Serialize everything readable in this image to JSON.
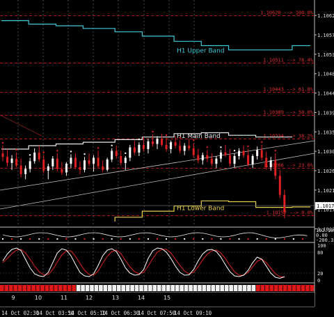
{
  "chart_data": {
    "type": "line",
    "instrument_title": "",
    "price_axis": {
      "ylim": [
        1.10142,
        1.1063
      ],
      "ticks": [
        "1.10620",
        "1.10575",
        "1.10530",
        "1.10485",
        "1.10440",
        "1.10395",
        "1.10350",
        "1.10305",
        "1.10260",
        "1.10215",
        "1.10170",
        "1.10125"
      ],
      "current_price": "1.10179"
    },
    "fib_levels": [
      {
        "price": 1.1062,
        "label": "1.10620 --> 100.0%"
      },
      {
        "price": 1.10511,
        "label": "1.10511 --> 76.4%"
      },
      {
        "price": 1.10443,
        "label": "1.10443 --> 61.8%"
      },
      {
        "price": 1.10389,
        "label": "1.10389 --> 50.0%"
      },
      {
        "price": 1.10334,
        "label": "1.10334 --> 38.2%"
      },
      {
        "price": 1.10266,
        "label": "1.10266 --> 23.6%"
      },
      {
        "price": 1.10157,
        "label": "1.10157 --> 0.0%"
      }
    ],
    "bands": [
      {
        "name": "H1 Upper Band",
        "color": "#40c8d8",
        "points": [
          [
            0,
            1.10608
          ],
          [
            6,
            1.10608
          ],
          [
            6,
            1.106
          ],
          [
            12,
            1.106
          ],
          [
            12,
            1.10596
          ],
          [
            18,
            1.10596
          ],
          [
            18,
            1.1059
          ],
          [
            25,
            1.1059
          ],
          [
            25,
            1.10582
          ],
          [
            31,
            1.10582
          ],
          [
            31,
            1.10572
          ],
          [
            38,
            1.10572
          ],
          [
            38,
            1.1056
          ],
          [
            44,
            1.1056
          ],
          [
            44,
            1.1055
          ],
          [
            50,
            1.1055
          ],
          [
            50,
            1.1054
          ],
          [
            64,
            1.1054
          ],
          [
            64,
            1.1055
          ],
          [
            68,
            1.1055
          ]
        ]
      },
      {
        "name": "H1 Main Band",
        "color": "#e8e8e8",
        "points": [
          [
            0,
            1.1031
          ],
          [
            6,
            1.1031
          ],
          [
            6,
            1.10318
          ],
          [
            12,
            1.10318
          ],
          [
            12,
            1.10322
          ],
          [
            18,
            1.10322
          ],
          [
            18,
            1.10326
          ],
          [
            25,
            1.10326
          ],
          [
            25,
            1.10332
          ],
          [
            31,
            1.10332
          ],
          [
            31,
            1.10338
          ],
          [
            38,
            1.10338
          ],
          [
            38,
            1.10346
          ],
          [
            44,
            1.10346
          ],
          [
            44,
            1.10348
          ],
          [
            50,
            1.10348
          ],
          [
            50,
            1.10342
          ],
          [
            56,
            1.10342
          ],
          [
            56,
            1.10338
          ],
          [
            64,
            1.10338
          ]
        ]
      },
      {
        "name": "H1 Lower Band",
        "color": "#e8d050",
        "points": [
          [
            25,
            1.10142
          ],
          [
            25,
            1.10152
          ],
          [
            31,
            1.10152
          ],
          [
            31,
            1.10166
          ],
          [
            38,
            1.10166
          ],
          [
            38,
            1.10178
          ],
          [
            44,
            1.10178
          ],
          [
            44,
            1.1019
          ],
          [
            50,
            1.1019
          ],
          [
            50,
            1.10188
          ],
          [
            56,
            1.10188
          ],
          [
            56,
            1.10175
          ],
          [
            64,
            1.10175
          ],
          [
            64,
            1.10176
          ],
          [
            68,
            1.10176
          ]
        ]
      }
    ],
    "candles": [
      [
        1.103,
        1.10318,
        1.10282,
        1.10292
      ],
      [
        1.10292,
        1.1031,
        1.1027,
        1.10278
      ],
      [
        1.10278,
        1.10296,
        1.10262,
        1.10288
      ],
      [
        1.10288,
        1.10302,
        1.10268,
        1.10272
      ],
      [
        1.10272,
        1.10288,
        1.10245,
        1.10252
      ],
      [
        1.10252,
        1.10272,
        1.1024,
        1.10264
      ],
      [
        1.10264,
        1.1029,
        1.10256,
        1.10282
      ],
      [
        1.10282,
        1.10312,
        1.10276,
        1.10302
      ],
      [
        1.10302,
        1.10318,
        1.1028,
        1.10286
      ],
      [
        1.10286,
        1.10296,
        1.10254,
        1.1026
      ],
      [
        1.1026,
        1.10276,
        1.1024,
        1.1027
      ],
      [
        1.1027,
        1.10294,
        1.10262,
        1.10288
      ],
      [
        1.10288,
        1.103,
        1.10258,
        1.10264
      ],
      [
        1.10264,
        1.1028,
        1.1025,
        1.10256
      ],
      [
        1.10256,
        1.1028,
        1.10248,
        1.10276
      ],
      [
        1.10276,
        1.10298,
        1.10266,
        1.1029
      ],
      [
        1.1029,
        1.103,
        1.10264,
        1.10268
      ],
      [
        1.10268,
        1.10282,
        1.10252,
        1.10262
      ],
      [
        1.10262,
        1.10292,
        1.10256,
        1.10284
      ],
      [
        1.10284,
        1.103,
        1.1027,
        1.10276
      ],
      [
        1.10276,
        1.10296,
        1.10258,
        1.1029
      ],
      [
        1.1029,
        1.10306,
        1.10266,
        1.1027
      ],
      [
        1.1027,
        1.10284,
        1.10256,
        1.10262
      ],
      [
        1.10262,
        1.1029,
        1.10258,
        1.10286
      ],
      [
        1.10286,
        1.10312,
        1.1028,
        1.10306
      ],
      [
        1.10306,
        1.10318,
        1.10288,
        1.10294
      ],
      [
        1.10294,
        1.10306,
        1.10272,
        1.10278
      ],
      [
        1.10278,
        1.10294,
        1.10262,
        1.1029
      ],
      [
        1.1029,
        1.1032,
        1.10282,
        1.10314
      ],
      [
        1.10314,
        1.1033,
        1.10296,
        1.10302
      ],
      [
        1.10302,
        1.10326,
        1.10294,
        1.1032
      ],
      [
        1.1032,
        1.10338,
        1.10304,
        1.1031
      ],
      [
        1.1031,
        1.10334,
        1.103,
        1.10328
      ],
      [
        1.10328,
        1.10344,
        1.10316,
        1.10322
      ],
      [
        1.10322,
        1.1034,
        1.1031,
        1.10334
      ],
      [
        1.10334,
        1.10346,
        1.10316,
        1.1032
      ],
      [
        1.1032,
        1.10336,
        1.10304,
        1.1031
      ],
      [
        1.1031,
        1.1033,
        1.103,
        1.10326
      ],
      [
        1.10326,
        1.1034,
        1.10312,
        1.10318
      ],
      [
        1.10318,
        1.1033,
        1.103,
        1.10306
      ],
      [
        1.10306,
        1.10324,
        1.10296,
        1.10318
      ],
      [
        1.10318,
        1.10334,
        1.10306,
        1.10312
      ],
      [
        1.10312,
        1.10324,
        1.1029,
        1.10296
      ],
      [
        1.10296,
        1.1031,
        1.10278,
        1.10284
      ],
      [
        1.10284,
        1.10302,
        1.10274,
        1.10296
      ],
      [
        1.10296,
        1.10308,
        1.1028,
        1.10288
      ],
      [
        1.10288,
        1.103,
        1.1027,
        1.10276
      ],
      [
        1.10276,
        1.10294,
        1.10266,
        1.10288
      ],
      [
        1.10288,
        1.10308,
        1.1028,
        1.10302
      ],
      [
        1.10302,
        1.1032,
        1.10292,
        1.10296
      ],
      [
        1.10296,
        1.1031,
        1.1027,
        1.10276
      ],
      [
        1.10276,
        1.103,
        1.10268,
        1.10294
      ],
      [
        1.10294,
        1.10312,
        1.10286,
        1.10306
      ],
      [
        1.10306,
        1.10318,
        1.1029,
        1.10296
      ],
      [
        1.10296,
        1.1031,
        1.1027,
        1.10274
      ],
      [
        1.10274,
        1.10298,
        1.10266,
        1.10294
      ],
      [
        1.10294,
        1.10316,
        1.10286,
        1.10308
      ],
      [
        1.10308,
        1.1032,
        1.10284,
        1.1029
      ],
      [
        1.1029,
        1.10304,
        1.10262,
        1.10268
      ],
      [
        1.10268,
        1.10292,
        1.1026,
        1.10284
      ],
      [
        1.10284,
        1.103,
        1.1024,
        1.10248
      ],
      [
        1.10248,
        1.10262,
        1.10196,
        1.10204
      ],
      [
        1.10204,
        1.10216,
        1.1015,
        1.10164
      ]
    ],
    "time_labels": [
      "14 Oct 02:30",
      "14 Oct 03:50",
      "14 Oct 05:10",
      "14 Oct 06:30",
      "14 Oct 07:50",
      "14 Oct 09:10"
    ],
    "day_labels": [
      "9",
      "10",
      "11",
      "12",
      "13",
      "14",
      "15"
    ],
    "cci_axis": [
      "192.107",
      "0.00",
      "-200.35"
    ],
    "stoch_axis": [
      "100",
      "80",
      "20",
      "0"
    ],
    "stoch_k": [
      55,
      75,
      88,
      92,
      85,
      60,
      35,
      18,
      12,
      10,
      22,
      50,
      78,
      90,
      86,
      70,
      45,
      22,
      12,
      10,
      18,
      42,
      70,
      86,
      90,
      82,
      60,
      35,
      20,
      14,
      16,
      30,
      62,
      84,
      92,
      90,
      80,
      62,
      40,
      22,
      14,
      15,
      30,
      55,
      75,
      86,
      88,
      82,
      66,
      44,
      24,
      12,
      10,
      14,
      28,
      50,
      66,
      60,
      40,
      20,
      8,
      5,
      10
    ],
    "stoch_d": [
      50,
      62,
      76,
      86,
      88,
      78,
      60,
      40,
      24,
      15,
      16,
      30,
      52,
      72,
      84,
      84,
      68,
      48,
      28,
      16,
      14,
      26,
      48,
      68,
      82,
      86,
      76,
      56,
      38,
      24,
      18,
      22,
      40,
      62,
      80,
      88,
      88,
      78,
      60,
      42,
      26,
      18,
      22,
      38,
      58,
      74,
      84,
      86,
      78,
      62,
      42,
      24,
      14,
      14,
      22,
      38,
      54,
      60,
      50,
      34,
      18,
      10,
      8
    ]
  }
}
